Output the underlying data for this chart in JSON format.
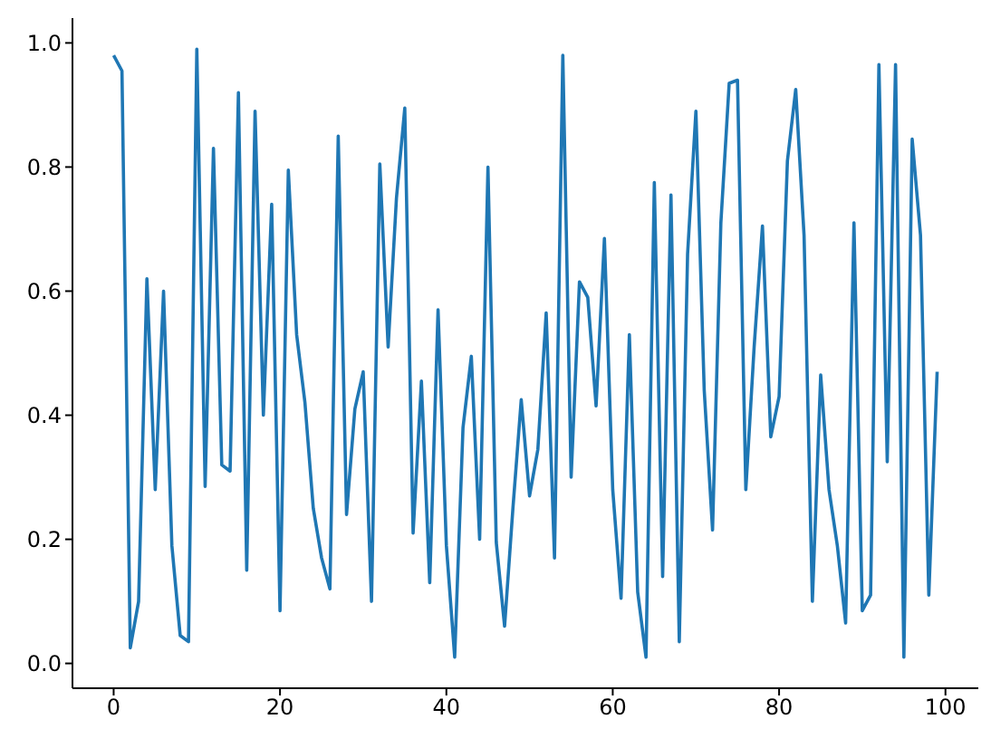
{
  "chart_data": {
    "type": "line",
    "x": [
      0,
      1,
      2,
      3,
      4,
      5,
      6,
      7,
      8,
      9,
      10,
      11,
      12,
      13,
      14,
      15,
      16,
      17,
      18,
      19,
      20,
      21,
      22,
      23,
      24,
      25,
      26,
      27,
      28,
      29,
      30,
      31,
      32,
      33,
      34,
      35,
      36,
      37,
      38,
      39,
      40,
      41,
      42,
      43,
      44,
      45,
      46,
      47,
      48,
      49,
      50,
      51,
      52,
      53,
      54,
      55,
      56,
      57,
      58,
      59,
      60,
      61,
      62,
      63,
      64,
      65,
      66,
      67,
      68,
      69,
      70,
      71,
      72,
      73,
      74,
      75,
      76,
      77,
      78,
      79,
      80,
      81,
      82,
      83,
      84,
      85,
      86,
      87,
      88,
      89,
      90,
      91,
      92,
      93,
      94,
      95,
      96,
      97,
      98,
      99
    ],
    "series": [
      {
        "color": "#1f77b4",
        "values": [
          0.98,
          0.955,
          0.025,
          0.1,
          0.62,
          0.28,
          0.6,
          0.19,
          0.045,
          0.035,
          0.99,
          0.285,
          0.83,
          0.32,
          0.31,
          0.92,
          0.15,
          0.89,
          0.4,
          0.74,
          0.085,
          0.795,
          0.53,
          0.42,
          0.25,
          0.17,
          0.12,
          0.85,
          0.24,
          0.41,
          0.47,
          0.1,
          0.805,
          0.51,
          0.75,
          0.895,
          0.21,
          0.455,
          0.13,
          0.57,
          0.19,
          0.01,
          0.38,
          0.495,
          0.2,
          0.8,
          0.195,
          0.06,
          0.25,
          0.425,
          0.27,
          0.345,
          0.565,
          0.17,
          0.98,
          0.3,
          0.615,
          0.59,
          0.415,
          0.685,
          0.28,
          0.105,
          0.53,
          0.115,
          0.01,
          0.775,
          0.14,
          0.755,
          0.035,
          0.66,
          0.89,
          0.44,
          0.215,
          0.71,
          0.935,
          0.94,
          0.28,
          0.51,
          0.705,
          0.365,
          0.43,
          0.81,
          0.925,
          0.69,
          0.1,
          0.465,
          0.28,
          0.19,
          0.065,
          0.71,
          0.085,
          0.11,
          0.965,
          0.325,
          0.965,
          0.01,
          0.845,
          0.69,
          0.11,
          0.47
        ]
      }
    ],
    "xlim": [
      -4.95,
      103.95
    ],
    "ylim": [
      -0.04,
      1.04
    ],
    "xticks": [
      0,
      20,
      40,
      60,
      80,
      100
    ],
    "yticks": [
      {
        "value": 0,
        "label": "0.0"
      },
      {
        "value": 0.2,
        "label": "0.2"
      },
      {
        "value": 0.4,
        "label": "0.4"
      },
      {
        "value": 0.6,
        "label": "0.6"
      },
      {
        "value": 0.8,
        "label": "0.8"
      },
      {
        "value": 1,
        "label": "1.0"
      }
    ],
    "grid": false,
    "legend": false,
    "marker": "none",
    "line_style": "solid"
  }
}
